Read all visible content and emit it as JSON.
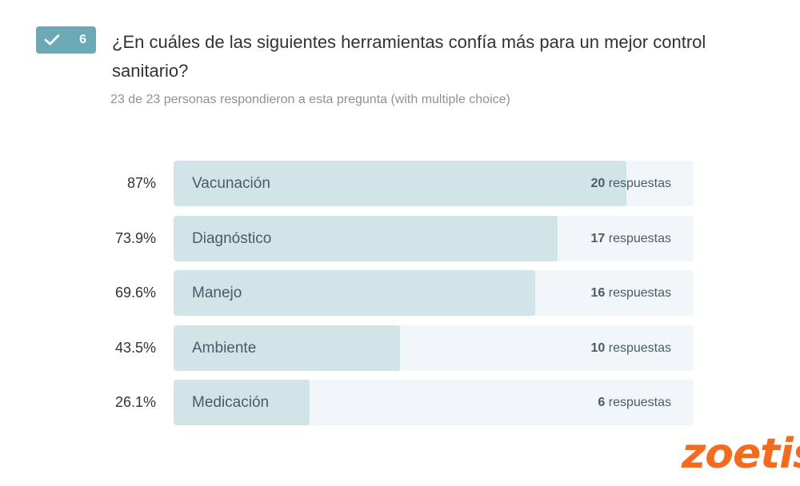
{
  "question": {
    "number": "6",
    "title": "¿En cuáles de las siguientes herramientas confía más para un mejor control sanitario?",
    "subtitle": "23 de 23 personas respondieron a esta pregunta (with multiple choice)",
    "badge_icon": "check-icon"
  },
  "logo": {
    "text": "zoetis"
  },
  "colors": {
    "badge": "#6aa9b5",
    "track": "#f1f7f8",
    "fill": "#d1e4e8",
    "logo": "#f26b21"
  },
  "chart_data": {
    "type": "bar",
    "orientation": "horizontal",
    "xlim": [
      0,
      100
    ],
    "unit_label": "respuestas",
    "categories": [
      "Vacunación",
      "Diagnóstico",
      "Manejo",
      "Ambiente",
      "Medicación"
    ],
    "percent_labels": [
      "87%",
      "73.9%",
      "69.6%",
      "43.5%",
      "26.1%"
    ],
    "values": [
      87,
      73.9,
      69.6,
      43.5,
      26.1
    ],
    "counts": [
      20,
      17,
      16,
      10,
      6
    ]
  }
}
